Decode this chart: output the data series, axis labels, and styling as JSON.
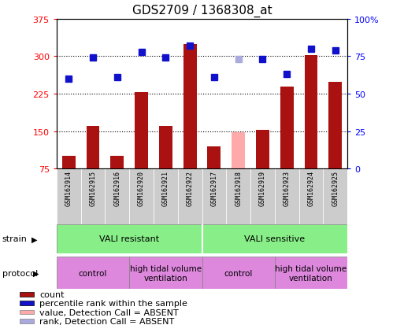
{
  "title": "GDS2709 / 1368308_at",
  "samples": [
    "GSM162914",
    "GSM162915",
    "GSM162916",
    "GSM162920",
    "GSM162921",
    "GSM162922",
    "GSM162917",
    "GSM162918",
    "GSM162919",
    "GSM162923",
    "GSM162924",
    "GSM162925"
  ],
  "bar_values": [
    100,
    160,
    100,
    228,
    160,
    325,
    120,
    148,
    152,
    240,
    303,
    248
  ],
  "bar_absent": [
    false,
    false,
    false,
    false,
    false,
    false,
    false,
    true,
    false,
    false,
    false,
    false
  ],
  "rank_values": [
    60,
    74,
    61,
    78,
    74,
    82,
    61,
    73,
    73,
    63,
    80,
    79
  ],
  "rank_absent": [
    false,
    false,
    false,
    false,
    false,
    false,
    false,
    true,
    false,
    false,
    false,
    false
  ],
  "ylim_left": [
    75,
    375
  ],
  "ylim_right": [
    0,
    100
  ],
  "left_ticks": [
    75,
    150,
    225,
    300,
    375
  ],
  "right_ticks": [
    0,
    25,
    50,
    75,
    100
  ],
  "right_tick_labels": [
    "0",
    "25",
    "50",
    "75",
    "100%"
  ],
  "bar_color": "#aa1111",
  "bar_absent_color": "#ffaaaa",
  "rank_color": "#1111cc",
  "rank_absent_color": "#aaaadd",
  "sample_bg_color": "#cccccc",
  "strain_color": "#88ee88",
  "protocol_color": "#dd88dd",
  "strain_groups": [
    {
      "label": "VALI resistant",
      "start": 0,
      "end": 6
    },
    {
      "label": "VALI sensitive",
      "start": 6,
      "end": 12
    }
  ],
  "protocol_groups": [
    {
      "label": "control",
      "start": 0,
      "end": 3
    },
    {
      "label": "high tidal volume\nventilation",
      "start": 3,
      "end": 6
    },
    {
      "label": "control",
      "start": 6,
      "end": 9
    },
    {
      "label": "high tidal volume\nventilation",
      "start": 9,
      "end": 12
    }
  ],
  "legend_items": [
    {
      "label": "count",
      "color": "#aa1111"
    },
    {
      "label": "percentile rank within the sample",
      "color": "#1111cc"
    },
    {
      "label": "value, Detection Call = ABSENT",
      "color": "#ffaaaa"
    },
    {
      "label": "rank, Detection Call = ABSENT",
      "color": "#aaaadd"
    }
  ],
  "title_fontsize": 11,
  "tick_fontsize": 8,
  "sample_fontsize": 6,
  "group_fontsize": 8,
  "legend_fontsize": 8
}
